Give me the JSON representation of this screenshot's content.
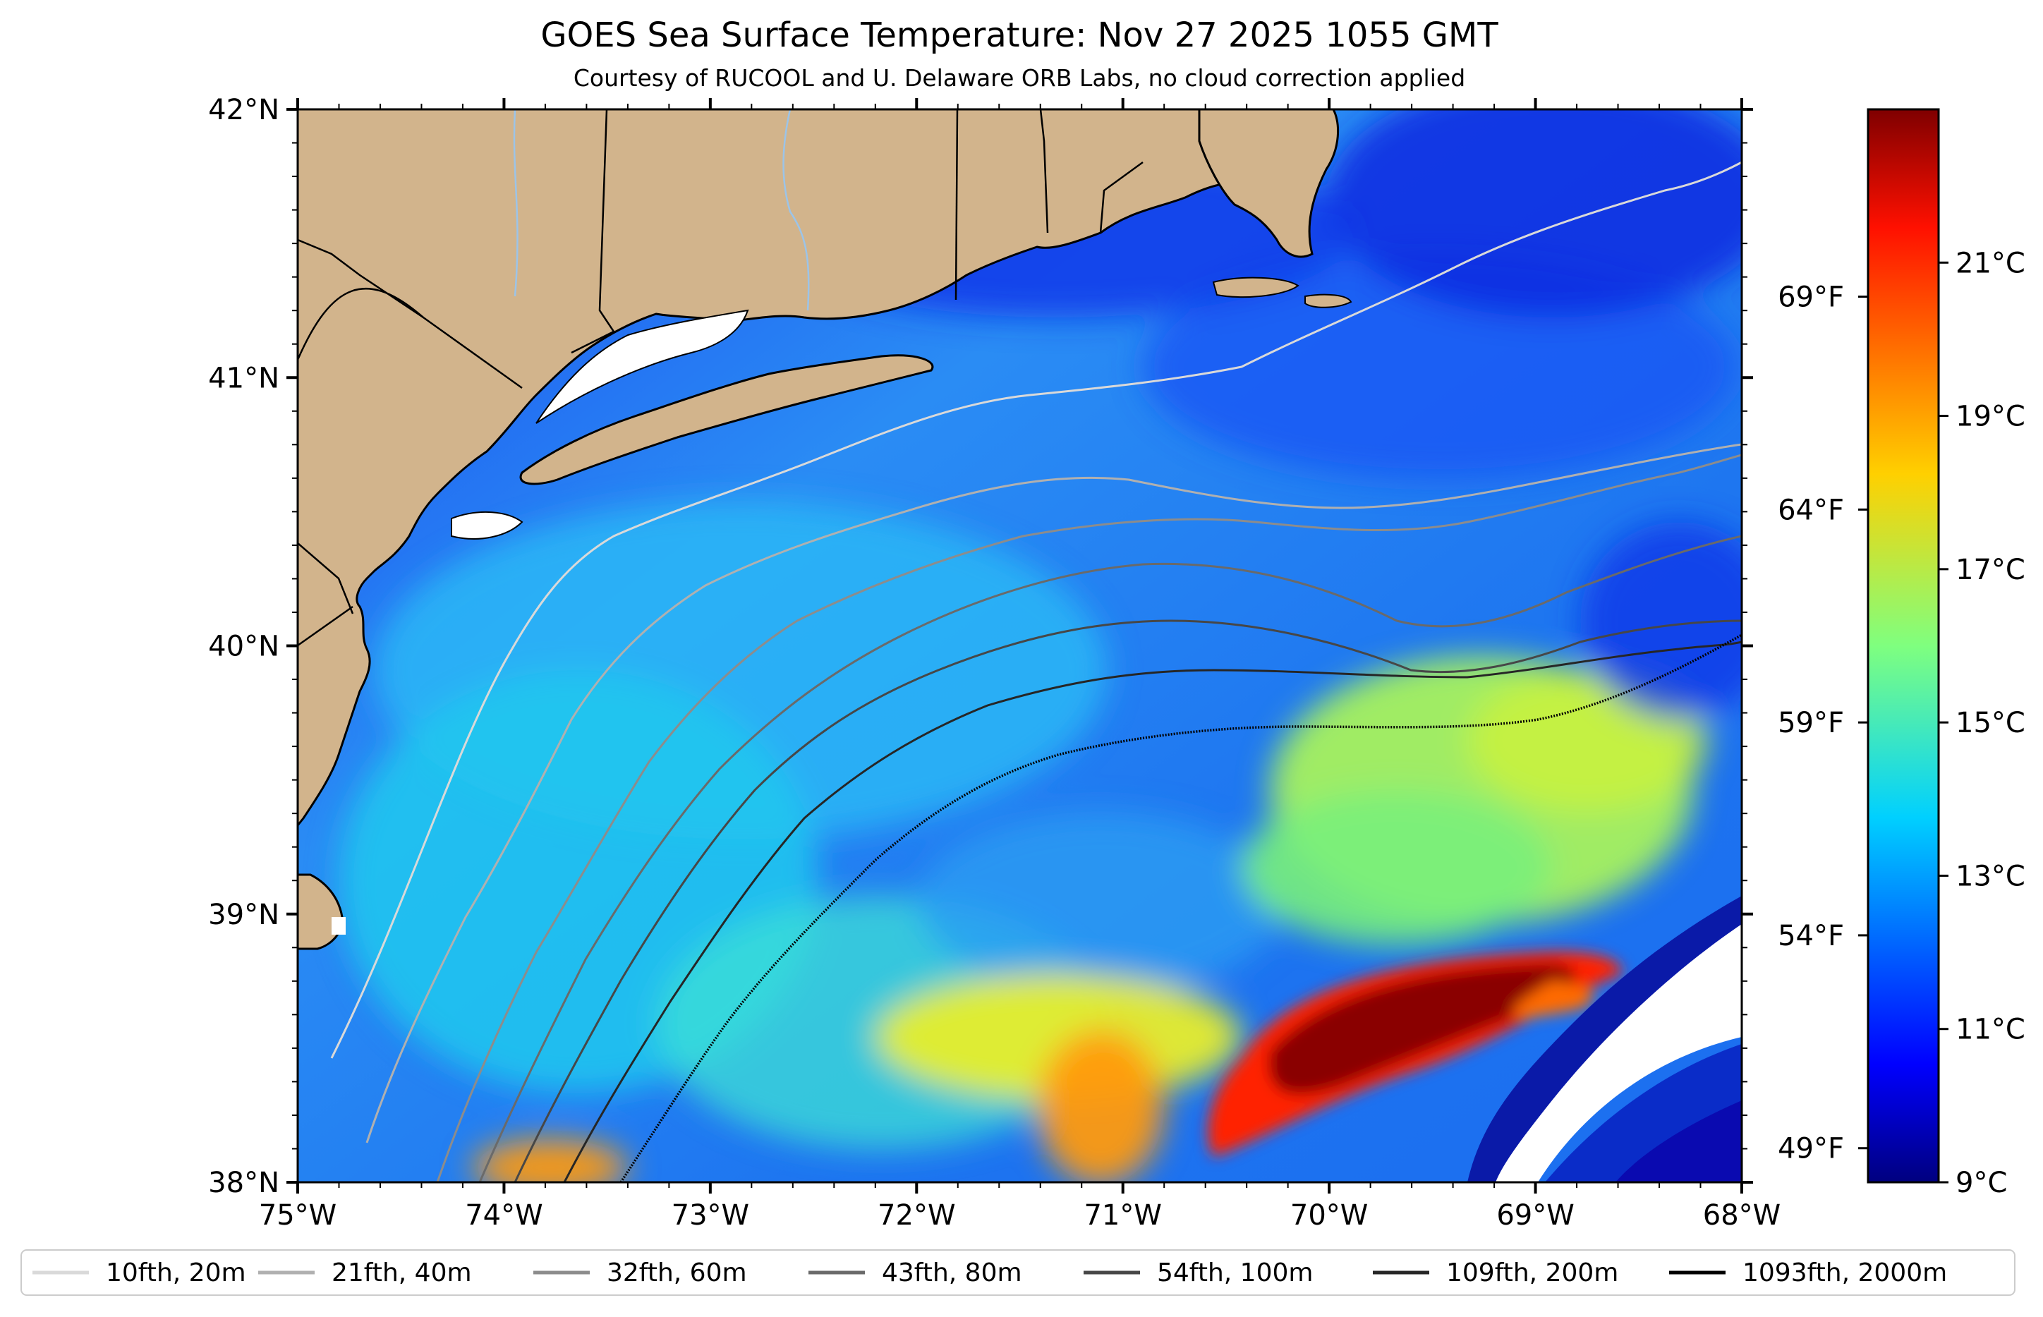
{
  "title": "GOES Sea Surface Temperature: Nov 27 2025 1055 GMT",
  "subtitle": "Courtesy of RUCOOL and U. Delaware ORB Labs, no cloud correction applied",
  "map": {
    "lon_range": [
      -75,
      -68
    ],
    "lat_range": [
      38,
      42
    ],
    "lon_ticks": [
      {
        "value": -75,
        "label": "75°W"
      },
      {
        "value": -74,
        "label": "74°W"
      },
      {
        "value": -73,
        "label": "73°W"
      },
      {
        "value": -72,
        "label": "72°W"
      },
      {
        "value": -71,
        "label": "71°W"
      },
      {
        "value": -70,
        "label": "70°W"
      },
      {
        "value": -69,
        "label": "69°W"
      },
      {
        "value": -68,
        "label": "68°W"
      }
    ],
    "lat_ticks": [
      {
        "value": 38,
        "label": "38°N"
      },
      {
        "value": 39,
        "label": "39°N"
      },
      {
        "value": 40,
        "label": "40°N"
      },
      {
        "value": 41,
        "label": "41°N"
      },
      {
        "value": 42,
        "label": "42°N"
      }
    ],
    "fahrenheit_ticks": [
      {
        "value": 69,
        "label": "69°F"
      },
      {
        "value": 64,
        "label": "64°F"
      },
      {
        "value": 59,
        "label": "59°F"
      },
      {
        "value": 54,
        "label": "54°F"
      },
      {
        "value": 49,
        "label": "49°F"
      }
    ],
    "land_color": "#d2b48c",
    "no_data_color": "#ffffff"
  },
  "colorbar": {
    "colormap": "jet",
    "range_c": [
      9,
      23
    ],
    "ticks": [
      {
        "value": 9,
        "label": "9°C"
      },
      {
        "value": 11,
        "label": "11°C"
      },
      {
        "value": 13,
        "label": "13°C"
      },
      {
        "value": 15,
        "label": "15°C"
      },
      {
        "value": 17,
        "label": "17°C"
      },
      {
        "value": 19,
        "label": "19°C"
      },
      {
        "value": 21,
        "label": "21°C"
      }
    ]
  },
  "legend": {
    "entries": [
      {
        "label": "10fth, 20m",
        "color": "#d9d9d9"
      },
      {
        "label": "21fth, 40m",
        "color": "#b0b0b0"
      },
      {
        "label": "32fth, 60m",
        "color": "#8c8c8c"
      },
      {
        "label": "43fth, 80m",
        "color": "#6a6a6a"
      },
      {
        "label": "54fth, 100m",
        "color": "#474747"
      },
      {
        "label": "109fth, 200m",
        "color": "#262626"
      },
      {
        "label": "1093fth, 2000m",
        "color": "#000000"
      }
    ]
  }
}
